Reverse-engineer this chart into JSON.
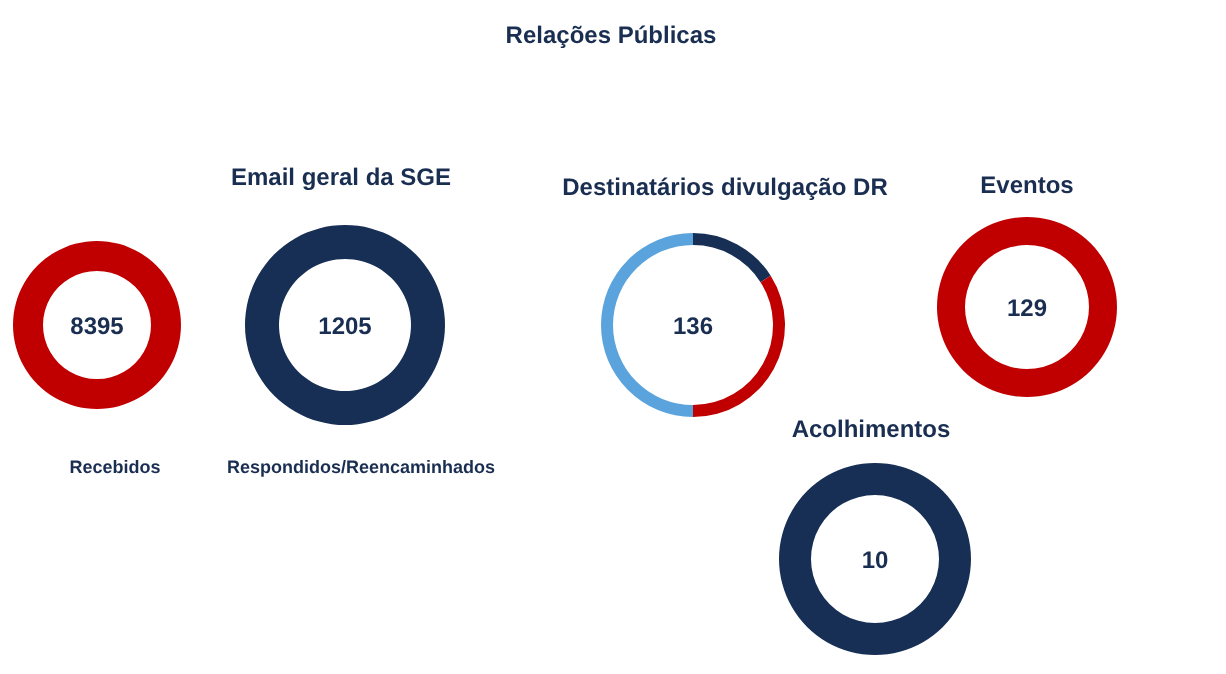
{
  "chart_data": [
    {
      "type": "other",
      "title": "Relações Públicas"
    },
    {
      "type": "other",
      "title": "Email geral da SGE"
    },
    {
      "type": "pie",
      "categories": [
        "Recebidos"
      ],
      "values": [
        8395
      ],
      "colors": [
        "#c00000"
      ],
      "data_labels": true
    },
    {
      "type": "pie",
      "categories": [
        "Respondidos/Reencaminhados"
      ],
      "values": [
        1205
      ],
      "colors": [
        "#172f55"
      ],
      "data_labels": true
    },
    {
      "type": "donut",
      "title": "Destinatários divulgação DR",
      "categories": [
        null,
        null,
        null
      ],
      "values": [
        16,
        34,
        50
      ],
      "colors": [
        "#172f55",
        "#c00000",
        "#5ba3dc"
      ],
      "annotations": [
        "136"
      ]
    },
    {
      "type": "pie",
      "title": "Eventos",
      "categories": [
        null
      ],
      "values": [
        129
      ],
      "colors": [
        "#c00000"
      ],
      "data_labels": true
    },
    {
      "type": "pie",
      "title": "Acolhimentos",
      "categories": [
        null
      ],
      "values": [
        10
      ],
      "colors": [
        "#172f55"
      ],
      "data_labels": true
    }
  ]
}
